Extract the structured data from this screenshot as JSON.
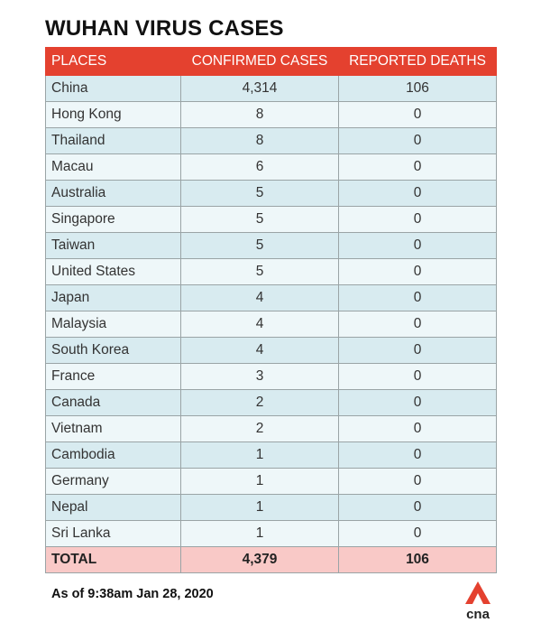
{
  "title": "WUHAN VIRUS CASES",
  "colors": {
    "header": "#e4412f",
    "row_dark": "#d8ebf0",
    "row_light": "#eef7f9",
    "total_row": "#f9c9c7",
    "logo": "#e4412f"
  },
  "chart_data": {
    "type": "table",
    "columns": [
      "PLACES",
      "CONFIRMED CASES",
      "REPORTED DEATHS"
    ],
    "rows": [
      [
        "China",
        "4,314",
        "106"
      ],
      [
        "Hong Kong",
        "8",
        "0"
      ],
      [
        "Thailand",
        "8",
        "0"
      ],
      [
        "Macau",
        "6",
        "0"
      ],
      [
        "Australia",
        "5",
        "0"
      ],
      [
        "Singapore",
        "5",
        "0"
      ],
      [
        "Taiwan",
        "5",
        "0"
      ],
      [
        "United States",
        "5",
        "0"
      ],
      [
        "Japan",
        "4",
        "0"
      ],
      [
        "Malaysia",
        "4",
        "0"
      ],
      [
        "South Korea",
        "4",
        "0"
      ],
      [
        "France",
        "3",
        "0"
      ],
      [
        "Canada",
        "2",
        "0"
      ],
      [
        "Vietnam",
        "2",
        "0"
      ],
      [
        "Cambodia",
        "1",
        "0"
      ],
      [
        "Germany",
        "1",
        "0"
      ],
      [
        "Nepal",
        "1",
        "0"
      ],
      [
        "Sri Lanka",
        "1",
        "0"
      ]
    ],
    "total": [
      "TOTAL",
      "4,379",
      "106"
    ]
  },
  "footer": {
    "timestamp": "As of 9:38am Jan 28, 2020",
    "logo_text": "cna"
  }
}
